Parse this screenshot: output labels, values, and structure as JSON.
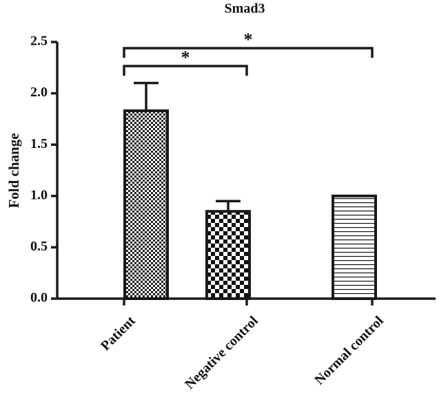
{
  "chart_data": {
    "type": "bar",
    "title": "Smad3",
    "y_label": "Fold change",
    "categories": [
      "Patient",
      "Negative control",
      "Normal control"
    ],
    "values": [
      1.83,
      0.85,
      1.0
    ],
    "errors": [
      0.27,
      0.1,
      null
    ],
    "patterns": [
      "fine-check",
      "check",
      "hlines"
    ],
    "color": "#1a1a1a",
    "ylim": [
      0,
      2.5
    ],
    "yticks": [
      {
        "value": 0,
        "label": "0.0"
      },
      0.5,
      {
        "value": 1,
        "label": "1.0"
      },
      1.5,
      {
        "value": 2,
        "label": "2.0"
      },
      2.5
    ],
    "annotations": [
      {
        "text": "*",
        "pair": [
          0,
          2
        ]
      },
      {
        "text": "*",
        "pair": [
          0,
          1
        ]
      }
    ]
  }
}
